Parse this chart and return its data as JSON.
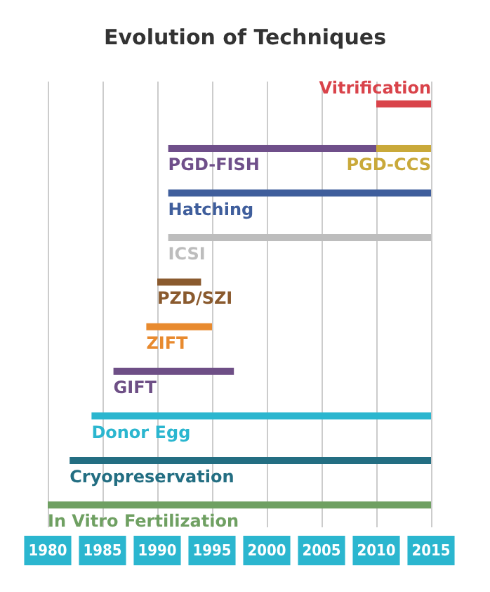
{
  "chart_data": {
    "type": "bar",
    "orientation": "horizontal",
    "title": "Evolution of Techniques",
    "categories": [
      null,
      null,
      null,
      null,
      null,
      null,
      null,
      null,
      null,
      null
    ],
    "series": [
      {
        "name": "Vitrification",
        "color": "#d9434a",
        "base": [
          2010,
          null,
          null,
          null,
          null,
          null,
          null,
          null,
          null,
          null
        ],
        "values": [
          5,
          null,
          null,
          null,
          null,
          null,
          null,
          null,
          null,
          null
        ]
      },
      {
        "name": "PGD-FISH",
        "color": "#6f4f8a",
        "base": [
          null,
          1991,
          null,
          null,
          null,
          null,
          null,
          null,
          null,
          null
        ],
        "values": [
          null,
          19,
          null,
          null,
          null,
          null,
          null,
          null,
          null,
          null
        ]
      },
      {
        "name": "PGD-CCS",
        "color": "#c9a93a",
        "base": [
          null,
          2010,
          null,
          null,
          null,
          null,
          null,
          null,
          null,
          null
        ],
        "values": [
          null,
          5,
          null,
          null,
          null,
          null,
          null,
          null,
          null,
          null
        ]
      },
      {
        "name": "Hatching",
        "color": "#3f5e9c",
        "base": [
          null,
          null,
          1991,
          null,
          null,
          null,
          null,
          null,
          null,
          null
        ],
        "values": [
          null,
          null,
          24,
          null,
          null,
          null,
          null,
          null,
          null,
          null
        ]
      },
      {
        "name": "ICSI",
        "color": "#bdbdbd",
        "base": [
          null,
          null,
          null,
          1991,
          null,
          null,
          null,
          null,
          null,
          null
        ],
        "values": [
          null,
          null,
          null,
          24,
          null,
          null,
          null,
          null,
          null,
          null
        ]
      },
      {
        "name": "PZD/SZI",
        "color": "#8a5a2e",
        "base": [
          null,
          null,
          null,
          null,
          1990,
          null,
          null,
          null,
          null,
          null
        ],
        "values": [
          null,
          null,
          null,
          null,
          4,
          null,
          null,
          null,
          null,
          null
        ]
      },
      {
        "name": "ZIFT",
        "color": "#e88a2e",
        "base": [
          null,
          null,
          null,
          null,
          null,
          1989,
          null,
          null,
          null,
          null
        ],
        "values": [
          null,
          null,
          null,
          null,
          null,
          6,
          null,
          null,
          null,
          null
        ]
      },
      {
        "name": "GIFT",
        "color": "#6e4f86",
        "base": [
          null,
          null,
          null,
          null,
          null,
          null,
          1986,
          null,
          null,
          null
        ],
        "values": [
          null,
          null,
          null,
          null,
          null,
          null,
          11,
          null,
          null,
          null
        ]
      },
      {
        "name": "Donor Egg",
        "color": "#2bb6cf",
        "base": [
          null,
          null,
          null,
          null,
          null,
          null,
          null,
          1984,
          null,
          null
        ],
        "values": [
          null,
          null,
          null,
          null,
          null,
          null,
          null,
          31,
          null,
          null
        ]
      },
      {
        "name": "Cryopreservation",
        "color": "#236e82",
        "base": [
          null,
          null,
          null,
          null,
          null,
          null,
          null,
          null,
          1982,
          null
        ],
        "values": [
          null,
          null,
          null,
          null,
          null,
          null,
          null,
          null,
          33,
          null
        ]
      },
      {
        "name": "In Vitro Fertilization",
        "color": "#6fa062",
        "base": [
          null,
          null,
          null,
          null,
          null,
          null,
          null,
          null,
          null,
          1980
        ],
        "values": [
          null,
          null,
          null,
          null,
          null,
          null,
          null,
          null,
          null,
          35
        ]
      }
    ],
    "xlim": [
      1980,
      2015
    ],
    "xticks": [
      1980,
      1985,
      1990,
      1995,
      2000,
      2005,
      2010,
      2015
    ],
    "grid": "x",
    "tick_labels": "x"
  }
}
